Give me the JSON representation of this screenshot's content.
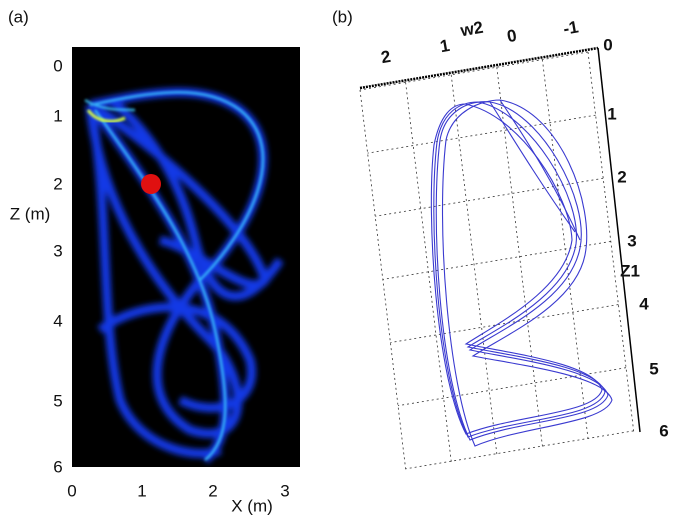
{
  "panels": [
    {
      "label": "(a)",
      "y_axis_label": "Z (m)",
      "x_axis_label": "X (m)",
      "y_ticks": [
        "0",
        "1",
        "2",
        "3",
        "4",
        "5",
        "6"
      ],
      "x_ticks": [
        "0",
        "1",
        "2",
        "3"
      ]
    },
    {
      "label": "(b)",
      "top_axis_label": "w2",
      "top_ticks": [
        "2",
        "1",
        "0",
        "-1"
      ],
      "right_axis_label": "Z1",
      "right_ticks": [
        "0",
        "1",
        "2",
        "3",
        "4",
        "5",
        "6"
      ]
    }
  ]
}
